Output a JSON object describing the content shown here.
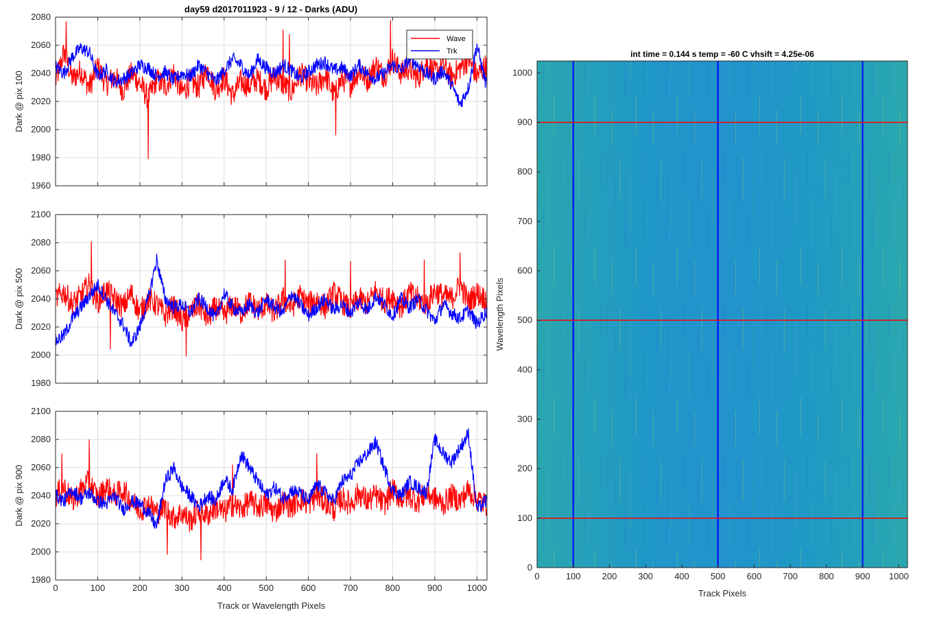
{
  "figure": {
    "suptitle": "day59 d2017011923 - 9 / 12 - Darks (ADU)",
    "xlabel_left": "Track or Wavelength Pixels"
  },
  "colors": {
    "wave": "#ff0000",
    "trk": "#0000ff",
    "grid": "#dcdcdc"
  },
  "chart_data": [
    {
      "type": "line",
      "ylabel": "Dark @ pix 100",
      "ylim": [
        1960,
        2080
      ],
      "yticks": [
        1960,
        1980,
        2000,
        2020,
        2040,
        2060,
        2080
      ],
      "xlim": [
        0,
        1024
      ],
      "xticks": [
        0,
        100,
        200,
        300,
        400,
        500,
        600,
        700,
        800,
        900,
        1000
      ],
      "show_xticklabels": false,
      "grid": true,
      "legend": {
        "position": "top-right",
        "entries": [
          "Wave",
          "Trk"
        ]
      },
      "series": [
        {
          "name": "Wave",
          "color": "#ff0000",
          "x": [
            0,
            20,
            40,
            60,
            80,
            100,
            120,
            140,
            160,
            180,
            200,
            220,
            240,
            260,
            280,
            300,
            320,
            340,
            360,
            380,
            400,
            420,
            440,
            460,
            480,
            500,
            520,
            540,
            560,
            580,
            600,
            620,
            640,
            660,
            680,
            700,
            720,
            740,
            760,
            780,
            800,
            820,
            840,
            860,
            880,
            900,
            920,
            940,
            960,
            980,
            1000,
            1020
          ],
          "values": [
            2034,
            2055,
            2036,
            2042,
            2030,
            2045,
            2032,
            2038,
            2028,
            2040,
            2033,
            2022,
            2036,
            2030,
            2041,
            2026,
            2034,
            2030,
            2043,
            2028,
            2037,
            2024,
            2034,
            2031,
            2036,
            2029,
            2038,
            2032,
            2027,
            2040,
            2034,
            2030,
            2039,
            2025,
            2036,
            2032,
            2042,
            2035,
            2046,
            2038,
            2050,
            2040,
            2044,
            2036,
            2048,
            2040,
            2046,
            2037,
            2044,
            2050,
            2038,
            2045
          ],
          "spikes": [
            [
              25,
              2077
            ],
            [
              220,
              1979
            ],
            [
              555,
              2068
            ],
            [
              665,
              1996
            ],
            [
              795,
              2078
            ],
            [
              540,
              2071
            ]
          ]
        },
        {
          "name": "Trk",
          "color": "#0000ff",
          "x": [
            0,
            20,
            40,
            60,
            80,
            100,
            120,
            140,
            160,
            180,
            200,
            220,
            240,
            260,
            280,
            300,
            320,
            340,
            360,
            380,
            400,
            420,
            440,
            460,
            480,
            500,
            520,
            540,
            560,
            580,
            600,
            620,
            640,
            660,
            680,
            700,
            720,
            740,
            760,
            780,
            800,
            820,
            840,
            860,
            880,
            900,
            920,
            940,
            960,
            980,
            1000,
            1020
          ],
          "values": [
            2045,
            2040,
            2052,
            2058,
            2055,
            2038,
            2042,
            2034,
            2036,
            2040,
            2046,
            2044,
            2038,
            2041,
            2035,
            2040,
            2038,
            2046,
            2040,
            2034,
            2042,
            2050,
            2046,
            2038,
            2050,
            2044,
            2040,
            2046,
            2042,
            2036,
            2041,
            2046,
            2048,
            2042,
            2044,
            2038,
            2046,
            2040,
            2036,
            2040,
            2046,
            2042,
            2050,
            2046,
            2040,
            2036,
            2042,
            2032,
            2018,
            2030,
            2060,
            2034
          ]
        }
      ]
    },
    {
      "type": "line",
      "ylabel": "Dark @ pix 500",
      "ylim": [
        1980,
        2100
      ],
      "yticks": [
        1980,
        2000,
        2020,
        2040,
        2060,
        2080,
        2100
      ],
      "xlim": [
        0,
        1024
      ],
      "xticks": [
        0,
        100,
        200,
        300,
        400,
        500,
        600,
        700,
        800,
        900,
        1000
      ],
      "show_xticklabels": false,
      "grid": true,
      "series": [
        {
          "name": "Wave",
          "color": "#ff0000",
          "x": [
            0,
            20,
            40,
            60,
            80,
            100,
            120,
            140,
            160,
            180,
            200,
            220,
            240,
            260,
            280,
            300,
            320,
            340,
            360,
            380,
            400,
            420,
            440,
            460,
            480,
            500,
            520,
            540,
            560,
            580,
            600,
            620,
            640,
            660,
            680,
            700,
            720,
            740,
            760,
            780,
            800,
            820,
            840,
            860,
            880,
            900,
            920,
            940,
            960,
            980,
            1000,
            1020
          ],
          "values": [
            2040,
            2045,
            2036,
            2042,
            2050,
            2038,
            2046,
            2040,
            2034,
            2044,
            2030,
            2040,
            2036,
            2028,
            2035,
            2024,
            2030,
            2036,
            2026,
            2034,
            2028,
            2036,
            2030,
            2038,
            2032,
            2036,
            2030,
            2040,
            2034,
            2042,
            2036,
            2040,
            2034,
            2044,
            2038,
            2032,
            2040,
            2036,
            2046,
            2038,
            2042,
            2034,
            2044,
            2040,
            2036,
            2046,
            2042,
            2040,
            2050,
            2038,
            2044,
            2040
          ],
          "spikes": [
            [
              85,
              2081
            ],
            [
              130,
              2004
            ],
            [
              310,
              1999
            ],
            [
              545,
              2068
            ],
            [
              700,
              2067
            ],
            [
              960,
              2073
            ],
            [
              875,
              2068
            ]
          ]
        },
        {
          "name": "Trk",
          "color": "#0000ff",
          "x": [
            0,
            20,
            40,
            60,
            80,
            100,
            120,
            140,
            160,
            180,
            200,
            220,
            240,
            260,
            280,
            300,
            320,
            340,
            360,
            380,
            400,
            420,
            440,
            460,
            480,
            500,
            520,
            540,
            560,
            580,
            600,
            620,
            640,
            660,
            680,
            700,
            720,
            740,
            760,
            780,
            800,
            820,
            840,
            860,
            880,
            900,
            920,
            940,
            960,
            980,
            1000,
            1020
          ],
          "values": [
            2010,
            2014,
            2026,
            2034,
            2042,
            2050,
            2040,
            2030,
            2022,
            2008,
            2020,
            2040,
            2068,
            2040,
            2034,
            2036,
            2030,
            2040,
            2034,
            2026,
            2044,
            2034,
            2030,
            2036,
            2030,
            2040,
            2034,
            2030,
            2044,
            2036,
            2028,
            2034,
            2040,
            2032,
            2036,
            2030,
            2038,
            2032,
            2042,
            2036,
            2028,
            2040,
            2034,
            2040,
            2032,
            2024,
            2036,
            2030,
            2026,
            2032,
            2022,
            2030
          ]
        }
      ]
    },
    {
      "type": "line",
      "ylabel": "Dark @ pix 900",
      "xlabel": "Track or Wavelength Pixels",
      "ylim": [
        1980,
        2100
      ],
      "yticks": [
        1980,
        2000,
        2020,
        2040,
        2060,
        2080,
        2100
      ],
      "xlim": [
        0,
        1024
      ],
      "xticks": [
        0,
        100,
        200,
        300,
        400,
        500,
        600,
        700,
        800,
        900,
        1000
      ],
      "show_xticklabels": true,
      "grid": true,
      "series": [
        {
          "name": "Wave",
          "color": "#ff0000",
          "x": [
            0,
            20,
            40,
            60,
            80,
            100,
            120,
            140,
            160,
            180,
            200,
            220,
            240,
            260,
            280,
            300,
            320,
            340,
            360,
            380,
            400,
            420,
            440,
            460,
            480,
            500,
            520,
            540,
            560,
            580,
            600,
            620,
            640,
            660,
            680,
            700,
            720,
            740,
            760,
            780,
            800,
            820,
            840,
            860,
            880,
            900,
            920,
            940,
            960,
            980,
            1000,
            1020
          ],
          "values": [
            2040,
            2046,
            2036,
            2044,
            2050,
            2038,
            2046,
            2040,
            2044,
            2036,
            2030,
            2034,
            2028,
            2032,
            2024,
            2028,
            2022,
            2030,
            2026,
            2032,
            2028,
            2034,
            2030,
            2036,
            2032,
            2034,
            2028,
            2036,
            2032,
            2038,
            2034,
            2040,
            2036,
            2030,
            2038,
            2034,
            2042,
            2036,
            2040,
            2034,
            2044,
            2038,
            2040,
            2036,
            2042,
            2038,
            2034,
            2040,
            2036,
            2044,
            2038,
            2034
          ],
          "spikes": [
            [
              15,
              2070
            ],
            [
              80,
              2080
            ],
            [
              265,
              1998
            ],
            [
              345,
              1994
            ],
            [
              420,
              2062
            ],
            [
              620,
              2070
            ]
          ]
        },
        {
          "name": "Trk",
          "color": "#0000ff",
          "x": [
            0,
            20,
            40,
            60,
            80,
            100,
            120,
            140,
            160,
            180,
            200,
            220,
            240,
            260,
            280,
            300,
            320,
            340,
            360,
            380,
            400,
            420,
            440,
            460,
            480,
            500,
            520,
            540,
            560,
            580,
            600,
            620,
            640,
            660,
            680,
            700,
            720,
            740,
            760,
            780,
            800,
            820,
            840,
            860,
            880,
            900,
            920,
            940,
            960,
            980,
            1000,
            1020
          ],
          "values": [
            2040,
            2036,
            2044,
            2038,
            2042,
            2036,
            2034,
            2040,
            2030,
            2036,
            2034,
            2028,
            2018,
            2050,
            2060,
            2046,
            2040,
            2032,
            2040,
            2036,
            2052,
            2044,
            2070,
            2060,
            2050,
            2040,
            2046,
            2038,
            2044,
            2042,
            2036,
            2048,
            2042,
            2036,
            2050,
            2054,
            2064,
            2070,
            2078,
            2060,
            2044,
            2040,
            2050,
            2046,
            2042,
            2080,
            2070,
            2064,
            2074,
            2084,
            2030,
            2036
          ]
        }
      ]
    },
    {
      "type": "heatmap",
      "title": "int time = 0.144 s   temp = -60 C   vhsift = 4.25e-06",
      "xlabel": "Track Pixels",
      "ylabel": "Wavelength Pixels",
      "xlim": [
        0,
        1024
      ],
      "ylim": [
        0,
        1024
      ],
      "xticks": [
        0,
        100,
        200,
        300,
        400,
        500,
        600,
        700,
        800,
        900,
        1000
      ],
      "yticks": [
        0,
        100,
        200,
        300,
        400,
        500,
        600,
        700,
        800,
        900,
        1000
      ],
      "colormap": "parula",
      "vertical_lines": {
        "color": "#0000ff",
        "x": [
          100,
          500,
          900
        ]
      },
      "horizontal_lines": {
        "color": "#ff0000",
        "y": [
          100,
          500,
          900
        ]
      }
    }
  ]
}
